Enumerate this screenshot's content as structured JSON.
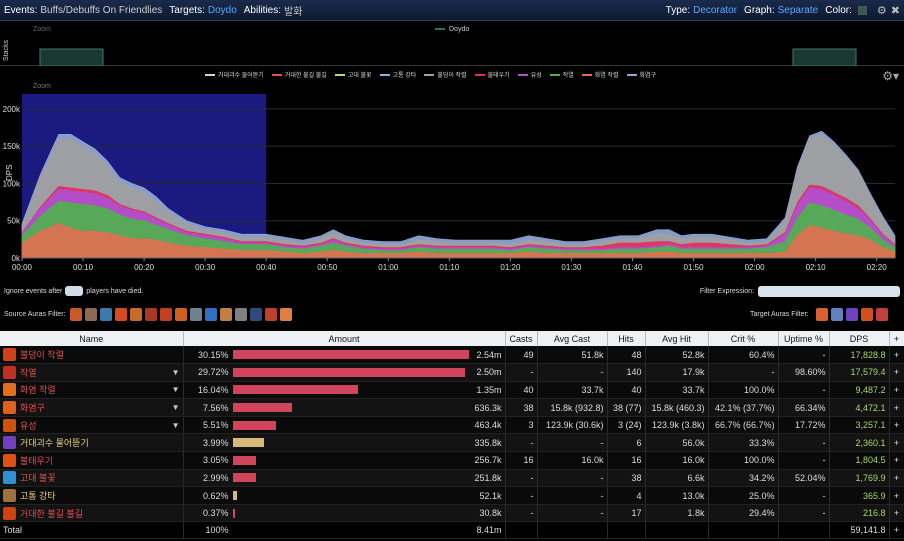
{
  "header": {
    "events_label": "Events:",
    "events_value": "Buffs/Debuffs On Friendlies",
    "targets_label": "Targets:",
    "targets_value": "Doydo",
    "abilities_label": "Abilities:",
    "abilities_value": "발화",
    "type_label": "Type:",
    "type_value": "Decorator",
    "graph_label": "Graph:",
    "graph_value": "Separate",
    "color_label": "Color:"
  },
  "stacks": {
    "ylabel": "Stacks",
    "zoom": "Zoom",
    "legend": "Doydo"
  },
  "chart_data": {
    "type": "area",
    "title": "",
    "zoom_label": "Zoom",
    "ylabel": "DPS",
    "xlabel": "",
    "ylim": [
      0,
      220000
    ],
    "y_ticks": [
      "0k",
      "50k",
      "100k",
      "150k",
      "200k"
    ],
    "y_tick_values": [
      0,
      50000,
      100000,
      150000,
      200000
    ],
    "x_ticks": [
      "00:00",
      "00:10",
      "00:20",
      "00:30",
      "00:40",
      "00:50",
      "01:00",
      "01:10",
      "01:20",
      "01:30",
      "01:40",
      "01:50",
      "02:00",
      "02:10",
      "02:20"
    ],
    "x_max_seconds": 143,
    "highlight_seconds": [
      0,
      40
    ],
    "x": [
      0,
      3,
      6,
      8,
      10,
      12,
      14,
      16,
      18,
      20,
      22,
      24,
      27,
      30,
      33,
      36,
      40,
      43,
      46,
      49,
      51,
      53,
      56,
      59,
      62,
      65,
      68,
      71,
      74,
      77,
      80,
      83,
      86,
      89,
      92,
      95,
      98,
      101,
      104,
      106,
      108,
      110,
      113,
      116,
      119,
      122,
      125,
      127,
      129,
      131,
      133,
      135,
      137,
      139,
      141,
      143
    ],
    "series": [
      {
        "name": "거대괴수 물어뜯기",
        "color": "#d4d4d4"
      },
      {
        "name": "거대한 불길 불길",
        "color": "#e05050"
      },
      {
        "name": "고대 불꽃",
        "color": "#b0e070"
      },
      {
        "name": "고통 강타",
        "color": "#80b8e0"
      },
      {
        "name": "불덩이 작렬",
        "color": "#a0a0a0"
      },
      {
        "name": "불태우기",
        "color": "#e03060"
      },
      {
        "name": "유성",
        "color": "#b050d0"
      },
      {
        "name": "작열",
        "color": "#50b050"
      },
      {
        "name": "화염 작렬",
        "color": "#e07050"
      },
      {
        "name": "화염구",
        "color": "#90a8d8"
      }
    ],
    "stack": [
      {
        "color": "#e07050",
        "values": [
          20,
          36,
          46,
          40,
          36,
          36,
          34,
          30,
          26,
          26,
          24,
          20,
          16,
          14,
          12,
          10,
          10,
          8,
          6,
          8,
          10,
          8,
          6,
          6,
          6,
          8,
          6,
          6,
          6,
          6,
          6,
          8,
          6,
          6,
          6,
          6,
          6,
          6,
          8,
          8,
          6,
          6,
          6,
          6,
          6,
          6,
          8,
          30,
          44,
          40,
          36,
          32,
          30,
          24,
          14,
          8
        ]
      },
      {
        "color": "#50b050",
        "values": [
          10,
          20,
          30,
          34,
          36,
          34,
          32,
          28,
          26,
          24,
          20,
          18,
          14,
          12,
          10,
          8,
          8,
          6,
          6,
          8,
          10,
          8,
          6,
          4,
          4,
          6,
          6,
          6,
          6,
          6,
          4,
          6,
          6,
          4,
          4,
          4,
          6,
          6,
          6,
          8,
          6,
          6,
          6,
          6,
          6,
          8,
          14,
          24,
          30,
          30,
          28,
          26,
          22,
          16,
          10,
          6
        ]
      },
      {
        "color": "#b050d0",
        "values": [
          4,
          10,
          16,
          16,
          16,
          16,
          14,
          12,
          12,
          10,
          8,
          6,
          4,
          4,
          4,
          2,
          2,
          2,
          2,
          2,
          4,
          2,
          2,
          2,
          2,
          2,
          2,
          2,
          2,
          2,
          2,
          2,
          2,
          2,
          2,
          2,
          2,
          2,
          2,
          2,
          2,
          2,
          2,
          2,
          2,
          2,
          10,
          16,
          20,
          22,
          20,
          18,
          14,
          10,
          6,
          2
        ]
      },
      {
        "color": "#e03060",
        "values": [
          0,
          2,
          4,
          4,
          4,
          4,
          4,
          2,
          2,
          2,
          2,
          2,
          2,
          2,
          2,
          2,
          2,
          2,
          2,
          2,
          2,
          2,
          2,
          2,
          2,
          2,
          2,
          2,
          2,
          2,
          2,
          2,
          2,
          2,
          2,
          4,
          6,
          6,
          6,
          4,
          4,
          6,
          6,
          4,
          2,
          2,
          2,
          4,
          4,
          4,
          4,
          4,
          4,
          2,
          2,
          2
        ]
      },
      {
        "color": "#a0a0a0",
        "values": [
          10,
          40,
          64,
          66,
          58,
          50,
          40,
          30,
          28,
          26,
          22,
          16,
          10,
          6,
          6,
          6,
          6,
          6,
          4,
          6,
          8,
          6,
          4,
          4,
          4,
          6,
          6,
          4,
          4,
          4,
          4,
          6,
          6,
          4,
          4,
          6,
          6,
          6,
          10,
          10,
          8,
          8,
          8,
          6,
          4,
          4,
          16,
          44,
          62,
          70,
          64,
          54,
          44,
          30,
          20,
          8
        ]
      },
      {
        "color": "#90a8d8",
        "values": [
          2,
          4,
          6,
          6,
          6,
          6,
          6,
          6,
          6,
          6,
          6,
          4,
          4,
          4,
          4,
          4,
          4,
          4,
          4,
          4,
          4,
          4,
          4,
          4,
          4,
          6,
          4,
          4,
          4,
          4,
          6,
          6,
          4,
          4,
          4,
          4,
          4,
          4,
          6,
          6,
          4,
          4,
          4,
          4,
          4,
          4,
          4,
          4,
          4,
          4,
          4,
          4,
          4,
          4,
          4,
          4
        ]
      }
    ]
  },
  "filters": {
    "ignore_before": "Ignore events after",
    "ignore_after": "players have died.",
    "filter_expression_label": "Filter Expression:",
    "source_auras_label": "Source Auras Filter:",
    "target_auras_label": "Target Auras Filter:",
    "source_aura_colors": [
      "#c85a28",
      "#8a6a50",
      "#3a7ab0",
      "#d84a20",
      "#c86a28",
      "#a83a20",
      "#c04020",
      "#d06020",
      "#708090",
      "#3070c0",
      "#c08040",
      "#808080",
      "#304a80",
      "#c04030",
      "#e08040"
    ],
    "target_aura_colors": [
      "#d86030",
      "#6080c0",
      "#7040c0",
      "#d05020",
      "#c04040"
    ]
  },
  "table": {
    "headers": {
      "name": "Name",
      "amount": "Amount",
      "casts": "Casts",
      "avg_cast": "Avg Cast",
      "hits": "Hits",
      "avg_hit": "Avg Hit",
      "crit": "Crit %",
      "uptime": "Uptime %",
      "dps": "DPS",
      "plus": "+"
    },
    "rows": [
      {
        "name": "불덩이 작렬",
        "name_color": "#e05050",
        "icon_color": "#d0401a",
        "dropdown": "",
        "pct": "30.15%",
        "fraction": 1.0,
        "bar_color": "#d0455c",
        "amount": "2.54m",
        "casts": "49",
        "avg_cast": "51.8k",
        "hits": "48",
        "avg_hit": "52.8k",
        "crit": "60.4%",
        "uptime": "-",
        "dps": "17,828.8",
        "plus": "+"
      },
      {
        "name": "작열",
        "name_color": "#e05050",
        "icon_color": "#c03020",
        "dropdown": "▼",
        "pct": "29.72%",
        "fraction": 0.986,
        "bar_color": "#d0455c",
        "amount": "2.50m",
        "casts": "-",
        "avg_cast": "-",
        "hits": "140",
        "avg_hit": "17.9k",
        "crit": "-",
        "uptime": "98.60%",
        "dps": "17,579.4",
        "plus": "+"
      },
      {
        "name": "화염 작렬",
        "name_color": "#e05050",
        "icon_color": "#e07020",
        "dropdown": "▼",
        "pct": "16.04%",
        "fraction": 0.532,
        "bar_color": "#d0455c",
        "amount": "1.35m",
        "casts": "40",
        "avg_cast": "33.7k",
        "hits": "40",
        "avg_hit": "33.7k",
        "crit": "100.0%",
        "uptime": "-",
        "dps": "9,487.2",
        "plus": "+"
      },
      {
        "name": "화염구",
        "name_color": "#e05050",
        "icon_color": "#e06020",
        "dropdown": "▼",
        "pct": "7.56%",
        "fraction": 0.251,
        "bar_color": "#d0455c",
        "amount": "636.3k",
        "casts": "38",
        "avg_cast": "15.8k (932.8)",
        "hits": "38 (77)",
        "avg_hit": "15.8k (460.3)",
        "crit": "42.1% (37.7%)",
        "uptime": "66.34%",
        "dps": "4,472.1",
        "plus": "+"
      },
      {
        "name": "유성",
        "name_color": "#e05050",
        "icon_color": "#d05010",
        "dropdown": "▼",
        "pct": "5.51%",
        "fraction": 0.183,
        "bar_color": "#d0455c",
        "amount": "463.4k",
        "casts": "3",
        "avg_cast": "123.9k (30.6k)",
        "hits": "3 (24)",
        "avg_hit": "123.9k (3.8k)",
        "crit": "66.7% (66.7%)",
        "uptime": "17.72%",
        "dps": "3,257.1",
        "plus": "+"
      },
      {
        "name": "거대괴수 물어뜯기",
        "name_color": "#e8d080",
        "icon_color": "#7040c0",
        "dropdown": "",
        "pct": "3.99%",
        "fraction": 0.132,
        "bar_color": "#d6b878",
        "amount": "335.8k",
        "casts": "-",
        "avg_cast": "-",
        "hits": "6",
        "avg_hit": "56.0k",
        "crit": "33.3%",
        "uptime": "-",
        "dps": "2,360.1",
        "plus": "+"
      },
      {
        "name": "불태우기",
        "name_color": "#e05050",
        "icon_color": "#e05010",
        "dropdown": "",
        "pct": "3.05%",
        "fraction": 0.101,
        "bar_color": "#d0455c",
        "amount": "256.7k",
        "casts": "16",
        "avg_cast": "16.0k",
        "hits": "16",
        "avg_hit": "16.0k",
        "crit": "100.0%",
        "uptime": "-",
        "dps": "1,804.5",
        "plus": "+"
      },
      {
        "name": "고대 불꽃",
        "name_color": "#e05050",
        "icon_color": "#3090d0",
        "dropdown": "",
        "pct": "2.99%",
        "fraction": 0.099,
        "bar_color": "#d0455c",
        "amount": "251.8k",
        "casts": "-",
        "avg_cast": "-",
        "hits": "38",
        "avg_hit": "6.6k",
        "crit": "34.2%",
        "uptime": "52.04%",
        "dps": "1,769.9",
        "plus": "+"
      },
      {
        "name": "고통 강타",
        "name_color": "#e8d080",
        "icon_color": "#a07040",
        "dropdown": "",
        "pct": "0.62%",
        "fraction": 0.021,
        "bar_color": "#d6b878",
        "amount": "52.1k",
        "casts": "-",
        "avg_cast": "-",
        "hits": "4",
        "avg_hit": "13.0k",
        "crit": "25.0%",
        "uptime": "-",
        "dps": "365.9",
        "plus": "+"
      },
      {
        "name": "거대한 불길 불길",
        "name_color": "#e05050",
        "icon_color": "#d04010",
        "dropdown": "",
        "pct": "0.37%",
        "fraction": 0.012,
        "bar_color": "#d0455c",
        "amount": "30.8k",
        "casts": "-",
        "avg_cast": "-",
        "hits": "17",
        "avg_hit": "1.8k",
        "crit": "29.4%",
        "uptime": "-",
        "dps": "216.8",
        "plus": "+"
      }
    ],
    "total": {
      "name": "Total",
      "pct": "100%",
      "amount": "8.41m",
      "dps": "59,141.8",
      "plus": "+"
    }
  }
}
